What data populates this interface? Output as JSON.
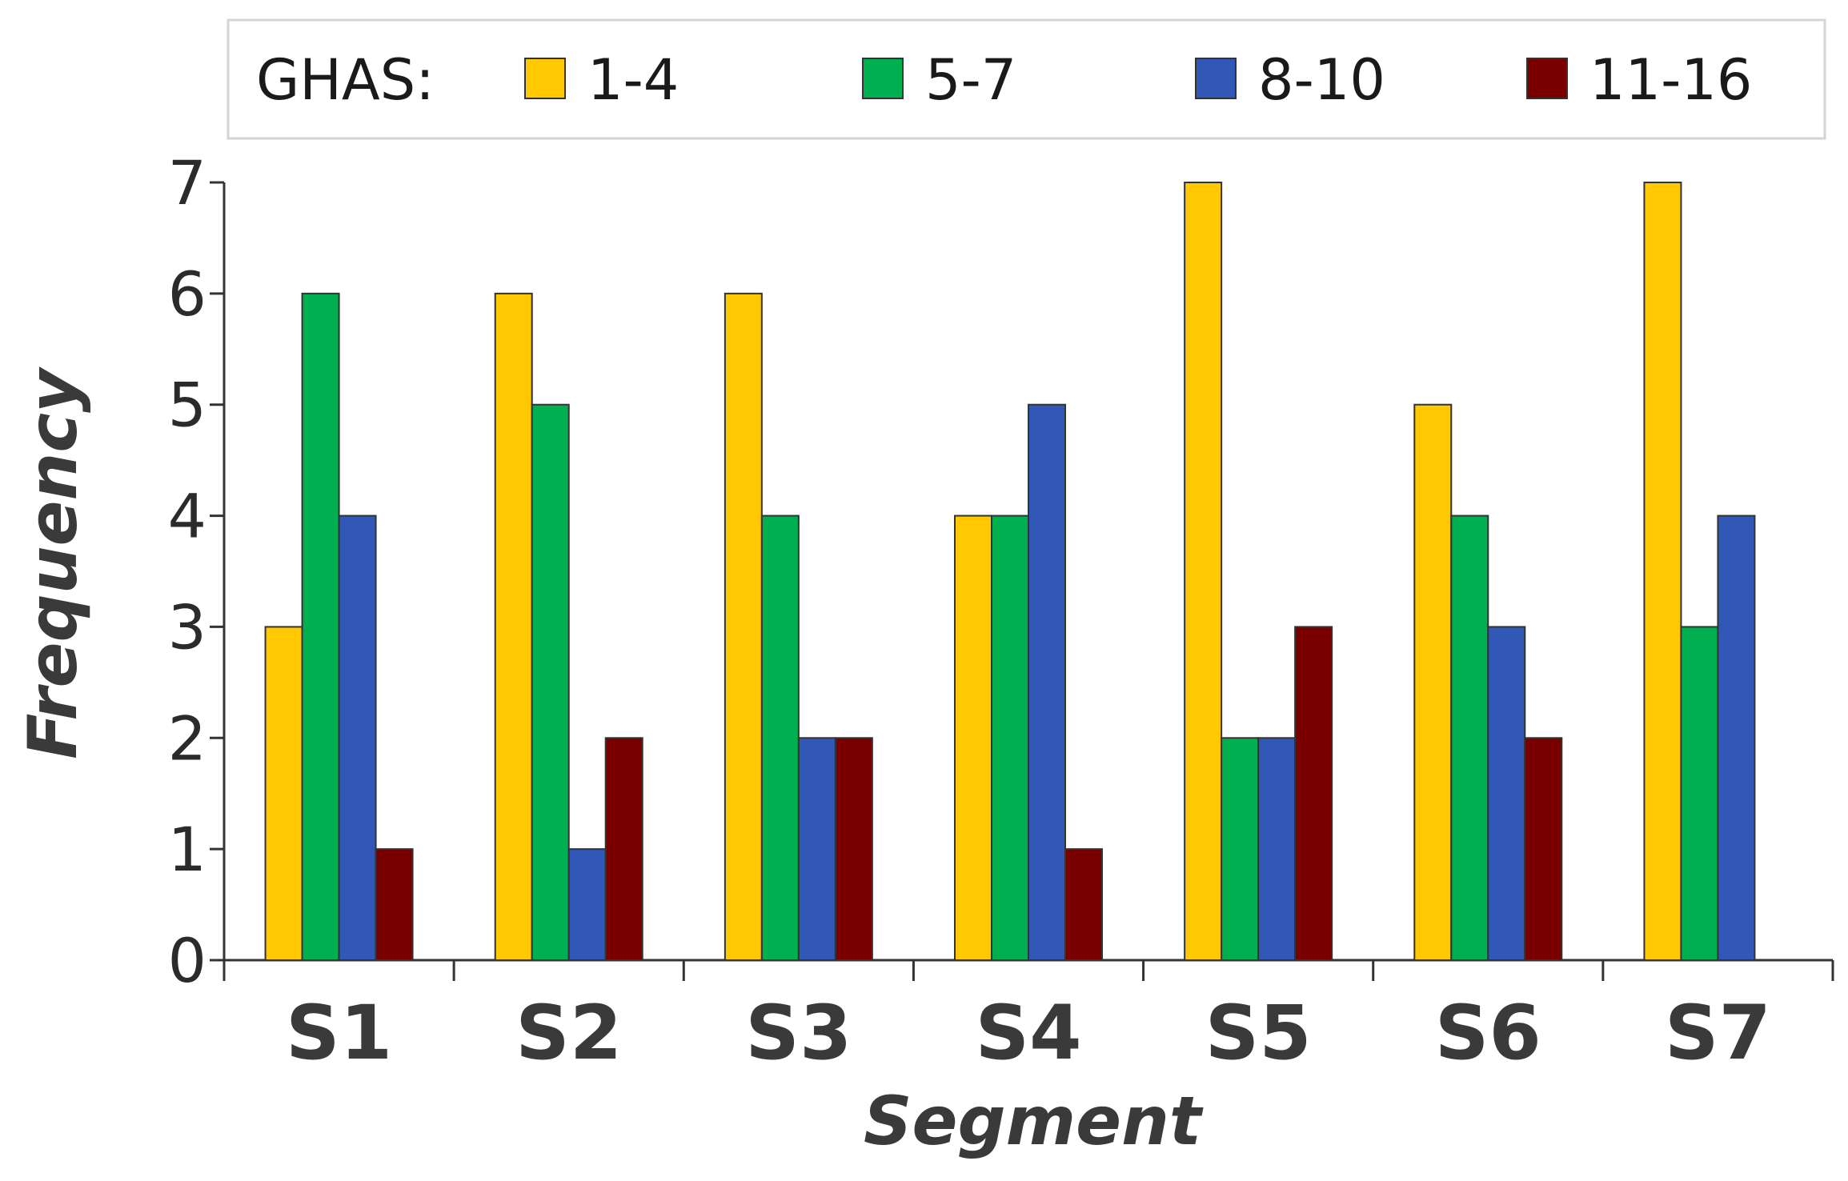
{
  "chart_data": {
    "type": "bar",
    "title": "",
    "xlabel": "Segment",
    "ylabel": "Frequency",
    "ylim": [
      0,
      7
    ],
    "yticks": [
      "0",
      "1",
      "2",
      "3",
      "4",
      "5",
      "6",
      "7"
    ],
    "categories": [
      "S1",
      "S2",
      "S3",
      "S4",
      "S5",
      "S6",
      "S7"
    ],
    "legend": {
      "title": "GHAS:",
      "placement": "top"
    },
    "series": [
      {
        "name": "1-4",
        "color": "#FFC800",
        "values": [
          3,
          6,
          6,
          4,
          7,
          5,
          7
        ]
      },
      {
        "name": "5-7",
        "color": "#00B050",
        "values": [
          6,
          5,
          4,
          4,
          2,
          4,
          3
        ]
      },
      {
        "name": "8-10",
        "color": "#3158B7",
        "values": [
          4,
          1,
          2,
          5,
          2,
          3,
          4
        ]
      },
      {
        "name": "11-16",
        "color": "#7A0000",
        "values": [
          1,
          2,
          2,
          1,
          3,
          2,
          0
        ]
      }
    ]
  }
}
